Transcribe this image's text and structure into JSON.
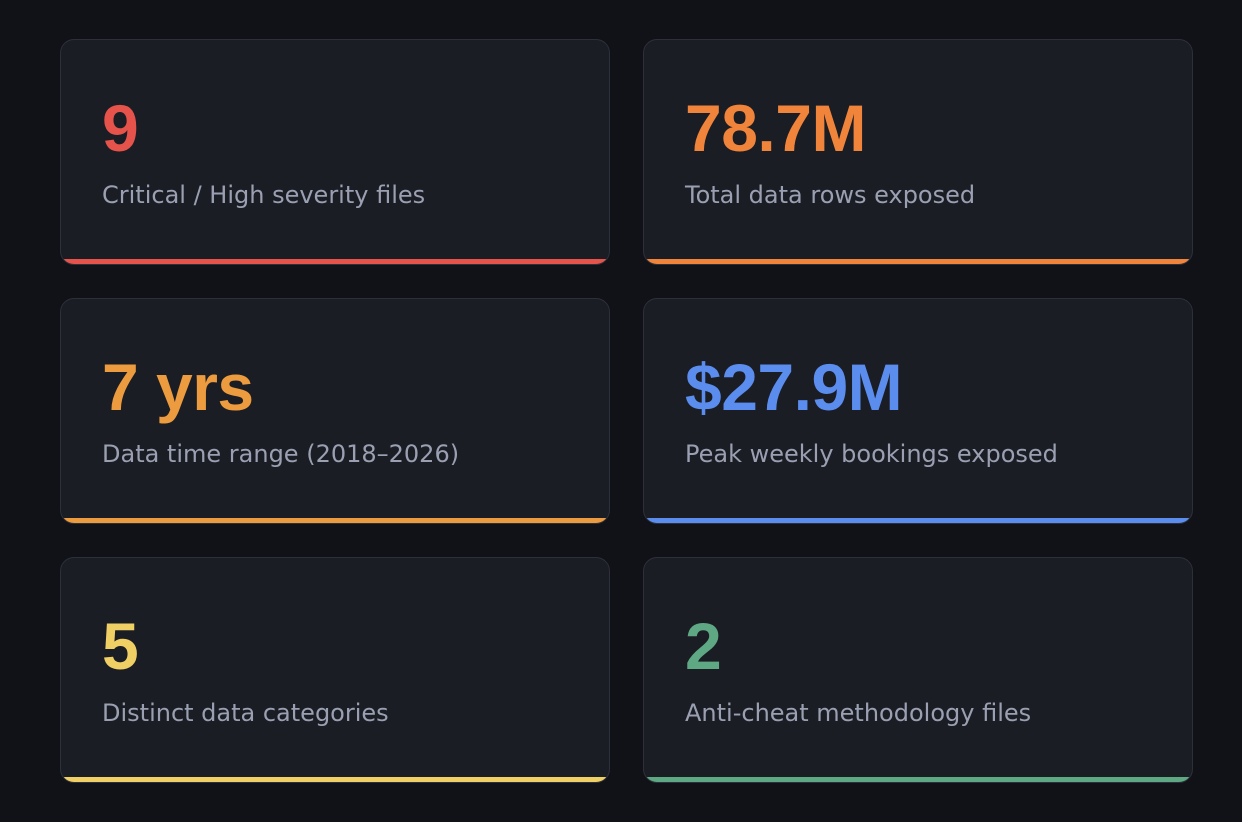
{
  "stats": [
    {
      "value": "9",
      "label": "Critical / High severity files",
      "color": "#e5534b"
    },
    {
      "value": "78.7M",
      "label": "Total data rows exposed",
      "color": "#f0843a"
    },
    {
      "value": "7 yrs",
      "label": "Data time range (2018–2026)",
      "color": "#ec9b3f"
    },
    {
      "value": "$27.9M",
      "label": "Peak weekly bookings exposed",
      "color": "#5b8def"
    },
    {
      "value": "5",
      "label": "Distinct data categories",
      "color": "#f0cf65"
    },
    {
      "value": "2",
      "label": "Anti-cheat methodology files",
      "color": "#5fa884"
    }
  ]
}
